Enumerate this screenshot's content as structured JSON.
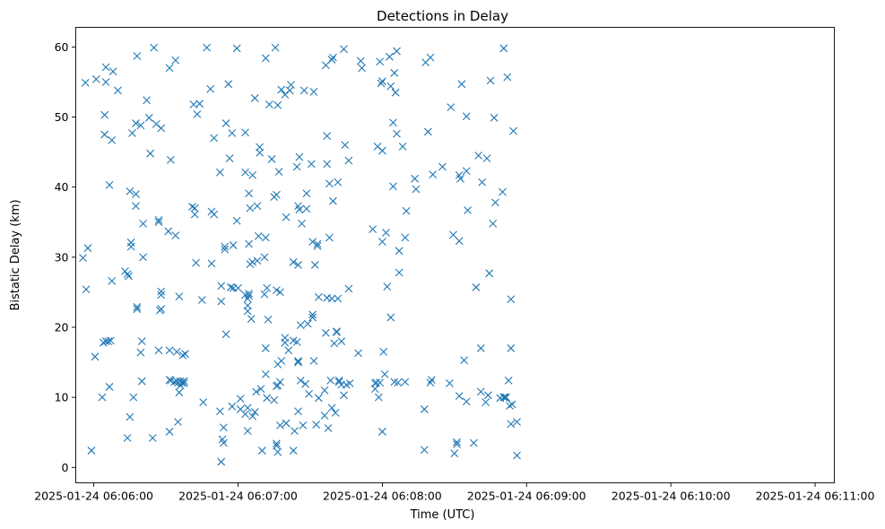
{
  "chart_data": {
    "type": "scatter",
    "title": "Detections in Delay",
    "xlabel": "Time (UTC)",
    "ylabel": "Bistatic Delay (km)",
    "x_unit": "seconds after 2025-01-24 06:05:00",
    "xlim": [
      52.5,
      368
    ],
    "ylim": [
      -2.2,
      62.8
    ],
    "grid": false,
    "marker": "x",
    "marker_color": "#1f77b4",
    "x_ticks": [
      {
        "value": 60,
        "label": "2025-01-24 06:06:00"
      },
      {
        "value": 120,
        "label": "2025-01-24 06:07:00"
      },
      {
        "value": 180,
        "label": "2025-01-24 06:08:00"
      },
      {
        "value": 240,
        "label": "2025-01-24 06:09:00"
      },
      {
        "value": 300,
        "label": "2025-01-24 06:10:00"
      },
      {
        "value": 360,
        "label": "2025-01-24 06:11:00"
      }
    ],
    "y_ticks": [
      {
        "value": 0,
        "label": "0"
      },
      {
        "value": 10,
        "label": "10"
      },
      {
        "value": 20,
        "label": "20"
      },
      {
        "value": 30,
        "label": "30"
      },
      {
        "value": 40,
        "label": "40"
      },
      {
        "value": 50,
        "label": "50"
      },
      {
        "value": 60,
        "label": "60"
      }
    ],
    "points": [
      [
        55.5,
        29.9
      ],
      [
        56.5,
        54.9
      ],
      [
        56.8,
        25.4
      ],
      [
        57.5,
        31.3
      ],
      [
        59,
        2.4
      ],
      [
        60.5,
        15.8
      ],
      [
        61,
        55.4
      ],
      [
        63.5,
        10
      ],
      [
        64,
        17.8
      ],
      [
        64.5,
        50.3
      ],
      [
        64.5,
        47.5
      ],
      [
        65,
        57.1
      ],
      [
        65,
        55
      ],
      [
        65,
        18
      ],
      [
        66,
        18
      ],
      [
        66.5,
        40.3
      ],
      [
        66.5,
        11.5
      ],
      [
        67,
        18.1
      ],
      [
        67.5,
        46.7
      ],
      [
        67.5,
        26.6
      ],
      [
        68,
        56.5
      ],
      [
        70,
        53.8
      ],
      [
        73,
        28
      ],
      [
        74,
        27.6
      ],
      [
        74,
        4.2
      ],
      [
        74.5,
        27.3
      ],
      [
        75,
        7.2
      ],
      [
        75,
        39.4
      ],
      [
        75.5,
        31.5
      ],
      [
        75.5,
        32.1
      ],
      [
        76,
        47.7
      ],
      [
        76.5,
        10
      ],
      [
        77.5,
        49.1
      ],
      [
        77.5,
        37.3
      ],
      [
        77.5,
        39
      ],
      [
        78,
        22.6
      ],
      [
        78,
        22.9
      ],
      [
        78,
        58.7
      ],
      [
        79.5,
        48.8
      ],
      [
        79.5,
        16.4
      ],
      [
        80,
        18
      ],
      [
        80,
        12.3
      ],
      [
        80.5,
        34.8
      ],
      [
        80.5,
        30
      ],
      [
        82,
        52.4
      ],
      [
        83,
        49.9
      ],
      [
        83.5,
        44.8
      ],
      [
        84.5,
        4.2
      ],
      [
        85,
        59.9
      ],
      [
        86,
        49
      ],
      [
        87,
        35
      ],
      [
        87,
        35.3
      ],
      [
        87,
        16.7
      ],
      [
        87.5,
        22.4
      ],
      [
        88,
        48.4
      ],
      [
        88,
        24.6
      ],
      [
        88,
        25.1
      ],
      [
        88,
        22.6
      ],
      [
        91,
        33.7
      ],
      [
        91.5,
        12.5
      ],
      [
        91.5,
        57
      ],
      [
        91.5,
        16.7
      ],
      [
        91.5,
        5.1
      ],
      [
        92,
        12.4
      ],
      [
        92,
        43.9
      ],
      [
        93.5,
        12.2
      ],
      [
        94,
        33.1
      ],
      [
        94,
        58.1
      ],
      [
        94.5,
        12.3
      ],
      [
        94.5,
        16.5
      ],
      [
        95,
        6.5
      ],
      [
        95,
        12.1
      ],
      [
        95.5,
        24.4
      ],
      [
        95.5,
        10.7
      ],
      [
        96,
        11.7
      ],
      [
        96,
        12.3
      ],
      [
        96.5,
        12.1
      ],
      [
        97,
        16
      ],
      [
        97.5,
        12.3
      ],
      [
        97.5,
        12
      ],
      [
        98,
        16.2
      ],
      [
        101,
        37.2
      ],
      [
        101.5,
        51.8
      ],
      [
        102,
        37
      ],
      [
        102,
        36.1
      ],
      [
        102.5,
        29.2
      ],
      [
        103,
        50.4
      ],
      [
        104,
        51.9
      ],
      [
        105,
        23.9
      ],
      [
        105.5,
        9.3
      ],
      [
        107,
        59.9
      ],
      [
        108.5,
        54
      ],
      [
        109,
        29.1
      ],
      [
        109,
        36.5
      ],
      [
        110,
        36.1
      ],
      [
        110,
        47
      ],
      [
        112.5,
        8
      ],
      [
        112.5,
        42.1
      ],
      [
        113,
        0.8
      ],
      [
        113,
        25.9
      ],
      [
        113,
        23.7
      ],
      [
        113.5,
        4
      ],
      [
        114,
        5.7
      ],
      [
        114,
        3.5
      ],
      [
        114.5,
        31.5
      ],
      [
        114.5,
        31.1
      ],
      [
        115,
        49.1
      ],
      [
        115,
        19
      ],
      [
        116,
        54.7
      ],
      [
        116.5,
        44.1
      ],
      [
        117,
        25.7
      ],
      [
        117,
        25.7
      ],
      [
        117.5,
        47.7
      ],
      [
        117.5,
        8.7
      ],
      [
        118,
        31.7
      ],
      [
        118,
        25.6
      ],
      [
        119.5,
        35.2
      ],
      [
        119.5,
        59.8
      ],
      [
        120,
        25.6
      ],
      [
        121,
        9.8
      ],
      [
        121,
        8.3
      ],
      [
        123,
        42.1
      ],
      [
        123,
        47.8
      ],
      [
        123,
        24.6
      ],
      [
        123,
        7.6
      ],
      [
        124,
        5.2
      ],
      [
        124,
        8.5
      ],
      [
        124,
        24.1
      ],
      [
        124,
        23.1
      ],
      [
        124,
        22.3
      ],
      [
        124.5,
        24.8
      ],
      [
        124.5,
        24.5
      ],
      [
        124.5,
        31.9
      ],
      [
        124.5,
        39.1
      ],
      [
        125,
        37
      ],
      [
        125,
        29
      ],
      [
        125.5,
        21.2
      ],
      [
        126,
        29.3
      ],
      [
        126,
        7.3
      ],
      [
        126,
        41.7
      ],
      [
        127,
        52.7
      ],
      [
        127,
        7.9
      ],
      [
        127.5,
        10.8
      ],
      [
        128,
        29.5
      ],
      [
        128,
        37.3
      ],
      [
        128.5,
        33
      ],
      [
        129,
        45.7
      ],
      [
        129,
        44.9
      ],
      [
        129.5,
        11.2
      ],
      [
        130,
        2.4
      ],
      [
        131,
        24.7
      ],
      [
        131,
        30
      ],
      [
        131.5,
        58.4
      ],
      [
        131.5,
        32.8
      ],
      [
        131.5,
        17
      ],
      [
        131.5,
        13.3
      ],
      [
        132,
        25.6
      ],
      [
        132,
        9.9
      ],
      [
        132.5,
        21.1
      ],
      [
        133,
        51.8
      ],
      [
        134,
        44
      ],
      [
        135,
        9.6
      ],
      [
        135,
        38.6
      ],
      [
        135.5,
        59.9
      ],
      [
        136,
        38.9
      ],
      [
        136,
        25.3
      ],
      [
        136,
        11.6
      ],
      [
        136,
        3.1
      ],
      [
        136,
        3.4
      ],
      [
        136.5,
        51.7
      ],
      [
        136.5,
        2.2
      ],
      [
        136.5,
        11.7
      ],
      [
        136.5,
        14.7
      ],
      [
        137,
        42.2
      ],
      [
        137.5,
        25
      ],
      [
        137.5,
        12.2
      ],
      [
        137.5,
        6
      ],
      [
        138,
        15.2
      ],
      [
        138,
        53.9
      ],
      [
        139.5,
        18.5
      ],
      [
        139.5,
        17.8
      ],
      [
        139.5,
        53.2
      ],
      [
        140,
        35.7
      ],
      [
        140,
        6.3
      ],
      [
        141,
        16.7
      ],
      [
        141.5,
        53.8
      ],
      [
        142,
        54.6
      ],
      [
        143,
        29.3
      ],
      [
        143,
        18.1
      ],
      [
        143,
        2.4
      ],
      [
        143.5,
        5.2
      ],
      [
        144.5,
        42.9
      ],
      [
        144.5,
        17.9
      ],
      [
        145,
        37.3
      ],
      [
        145,
        28.9
      ],
      [
        145,
        15
      ],
      [
        145,
        15.2
      ],
      [
        145,
        8
      ],
      [
        145.5,
        44.3
      ],
      [
        145.5,
        36.8
      ],
      [
        146,
        12.4
      ],
      [
        146,
        20.3
      ],
      [
        146.5,
        34.8
      ],
      [
        147,
        6
      ],
      [
        147.5,
        53.8
      ],
      [
        148,
        11.9
      ],
      [
        148.5,
        36.9
      ],
      [
        148.5,
        39.1
      ],
      [
        149,
        20.5
      ],
      [
        149.5,
        10.5
      ],
      [
        150.5,
        43.3
      ],
      [
        151,
        32.2
      ],
      [
        151,
        21.4
      ],
      [
        151,
        21.8
      ],
      [
        151.5,
        15.2
      ],
      [
        151.5,
        53.6
      ],
      [
        152,
        28.9
      ],
      [
        152.5,
        6.1
      ],
      [
        153,
        31.6
      ],
      [
        153,
        31.9
      ],
      [
        153.5,
        9.9
      ],
      [
        153.5,
        24.3
      ],
      [
        156,
        7.4
      ],
      [
        156,
        11
      ],
      [
        156.5,
        19.2
      ],
      [
        156.5,
        57.4
      ],
      [
        157,
        47.3
      ],
      [
        157,
        43.3
      ],
      [
        157,
        24.2
      ],
      [
        157.5,
        5.6
      ],
      [
        158,
        32.8
      ],
      [
        158,
        40.5
      ],
      [
        158.5,
        12.4
      ],
      [
        159,
        8.5
      ],
      [
        159,
        24.1
      ],
      [
        159,
        58.2
      ],
      [
        159.5,
        58.5
      ],
      [
        159.5,
        38
      ],
      [
        160,
        17.7
      ],
      [
        160.5,
        7.8
      ],
      [
        161,
        19.3
      ],
      [
        161,
        19.4
      ],
      [
        161.5,
        40.7
      ],
      [
        161.5,
        24.1
      ],
      [
        162,
        12.2
      ],
      [
        162,
        12.4
      ],
      [
        163,
        18
      ],
      [
        163,
        11.8
      ],
      [
        164,
        10.3
      ],
      [
        164,
        59.7
      ],
      [
        164.5,
        46
      ],
      [
        165,
        11.8
      ],
      [
        166,
        43.8
      ],
      [
        166,
        25.5
      ],
      [
        166.5,
        12
      ],
      [
        170,
        16.3
      ],
      [
        171,
        58
      ],
      [
        171.5,
        57
      ],
      [
        176,
        34
      ],
      [
        177,
        12
      ],
      [
        177,
        11.2
      ],
      [
        177.5,
        12.1
      ],
      [
        178,
        45.8
      ],
      [
        178.5,
        10
      ],
      [
        179,
        12.1
      ],
      [
        179,
        57.9
      ],
      [
        179.5,
        54.8
      ],
      [
        180,
        55.1
      ],
      [
        180,
        45.2
      ],
      [
        180,
        32.2
      ],
      [
        180,
        5.1
      ],
      [
        180.5,
        16.5
      ],
      [
        181,
        13.3
      ],
      [
        181.5,
        33.5
      ],
      [
        182,
        25.8
      ],
      [
        183,
        58.6
      ],
      [
        183.5,
        54.4
      ],
      [
        183.5,
        21.4
      ],
      [
        184.5,
        49.2
      ],
      [
        184.5,
        40.1
      ],
      [
        185,
        56.3
      ],
      [
        185,
        12.2
      ],
      [
        185.5,
        53.5
      ],
      [
        186,
        59.4
      ],
      [
        186,
        47.6
      ],
      [
        186.5,
        12.1
      ],
      [
        187,
        27.8
      ],
      [
        187,
        30.9
      ],
      [
        188.5,
        45.8
      ],
      [
        189.5,
        12.2
      ],
      [
        189.5,
        32.8
      ],
      [
        190,
        36.6
      ],
      [
        193.5,
        41.2
      ],
      [
        194,
        39.7
      ],
      [
        197.5,
        8.3
      ],
      [
        197.5,
        2.5
      ],
      [
        198,
        57.8
      ],
      [
        199,
        47.9
      ],
      [
        200,
        58.5
      ],
      [
        200,
        12.1
      ],
      [
        200.5,
        12.5
      ],
      [
        201,
        41.8
      ],
      [
        205,
        42.9
      ],
      [
        208,
        12
      ],
      [
        208.5,
        51.4
      ],
      [
        209.5,
        33.2
      ],
      [
        210,
        2
      ],
      [
        211,
        3.6
      ],
      [
        211,
        3.3
      ],
      [
        212,
        32.3
      ],
      [
        212,
        10.2
      ],
      [
        212,
        41.7
      ],
      [
        212.5,
        41.2
      ],
      [
        213,
        54.7
      ],
      [
        214,
        15.3
      ],
      [
        215,
        50.1
      ],
      [
        215,
        42.3
      ],
      [
        215,
        9.4
      ],
      [
        215.5,
        36.7
      ],
      [
        218,
        3.5
      ],
      [
        219,
        25.7
      ],
      [
        220,
        44.5
      ],
      [
        221,
        10.8
      ],
      [
        221,
        17
      ],
      [
        221.5,
        40.7
      ],
      [
        223,
        9.3
      ],
      [
        223.5,
        44.1
      ],
      [
        224,
        10.3
      ],
      [
        224.5,
        27.7
      ],
      [
        225,
        55.2
      ],
      [
        226,
        34.8
      ],
      [
        226.5,
        49.9
      ],
      [
        227,
        37.8
      ],
      [
        229,
        9.9
      ],
      [
        230,
        39.3
      ],
      [
        230.5,
        59.8
      ],
      [
        230.5,
        10
      ],
      [
        231,
        10
      ],
      [
        231.5,
        10
      ],
      [
        232,
        55.7
      ],
      [
        232.5,
        12.4
      ],
      [
        233,
        8.8
      ],
      [
        233.5,
        6.2
      ],
      [
        233.5,
        17
      ],
      [
        233.5,
        24
      ],
      [
        234,
        9
      ],
      [
        234.5,
        48
      ],
      [
        236,
        6.5
      ],
      [
        236,
        1.7
      ]
    ]
  }
}
